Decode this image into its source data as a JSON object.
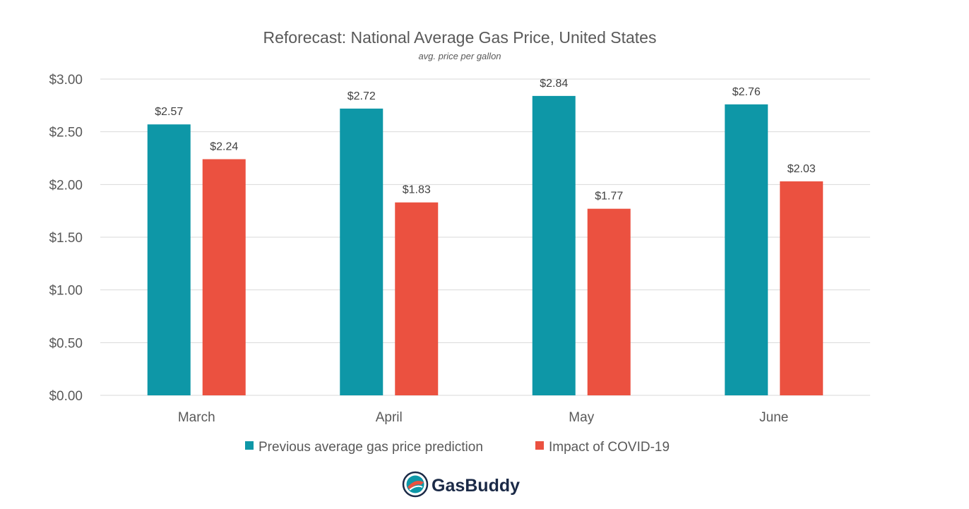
{
  "chart_data": {
    "type": "bar",
    "title": "Reforecast: National Average Gas Price, United States",
    "subtitle": "avg. price per gallon",
    "categories": [
      "March",
      "April",
      "May",
      "June"
    ],
    "series": [
      {
        "name": "Previous average gas price prediction",
        "color": "#0e97a7",
        "values": [
          2.57,
          2.72,
          2.84,
          2.76
        ],
        "labels": [
          "$2.57",
          "$2.72",
          "$2.84",
          "$2.76"
        ]
      },
      {
        "name": "Impact of COVID-19",
        "color": "#eb5140",
        "values": [
          2.24,
          1.83,
          1.77,
          2.03
        ],
        "labels": [
          "$2.24",
          "$1.83",
          "$1.77",
          "$2.03"
        ]
      }
    ],
    "yticks": [
      0,
      0.5,
      1.0,
      1.5,
      2.0,
      2.5,
      3.0
    ],
    "ytick_labels": [
      "$0.00",
      "$0.50",
      "$1.00",
      "$1.50",
      "$2.00",
      "$2.50",
      "$3.00"
    ],
    "ylim": [
      0,
      3.0
    ],
    "grid": true,
    "legend_position": "bottom"
  },
  "brand": {
    "name": "GasBuddy",
    "icon": "gasbuddy-logo-icon"
  }
}
